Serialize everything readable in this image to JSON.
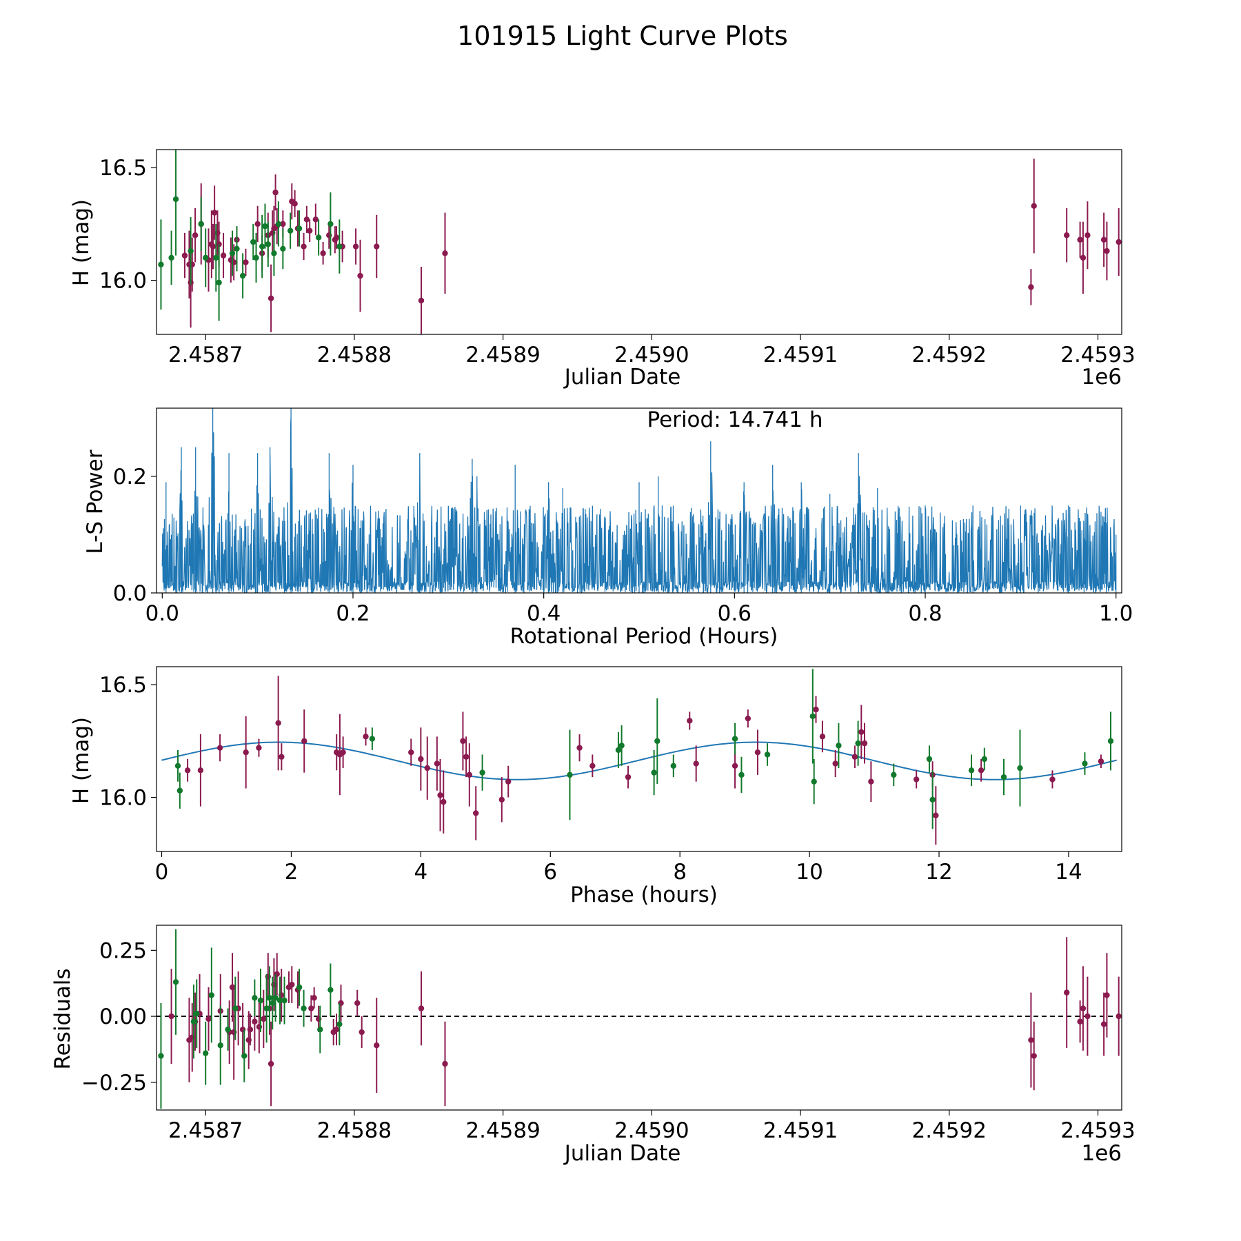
{
  "figure": {
    "title": "101915 Light Curve Plots"
  },
  "colors": {
    "observed_r": "#8b1a4f",
    "observed_g": "#127a2c",
    "periodogram": "#1f77b4",
    "model_fit": "#1f77b4",
    "zero_line": "#000000"
  },
  "chart_data": [
    {
      "id": "lightcurve",
      "type": "scatter",
      "title": "",
      "xlabel": "Julian Date",
      "ylabel": "H (mag)",
      "offset_label": "1e6",
      "xlim": [
        2458667,
        2459316
      ],
      "ylim": [
        15.76,
        16.58
      ],
      "xticks": [
        2458700,
        2458800,
        2458900,
        2459000,
        2459100,
        2459200,
        2459300
      ],
      "xtick_labels": [
        "2.4587",
        "2.4588",
        "2.4589",
        "2.4590",
        "2.4591",
        "2.4592",
        "2.4593"
      ],
      "yticks": [
        16.0,
        16.5
      ],
      "ytick_labels": [
        "16.0",
        "16.5"
      ],
      "series": [
        {
          "name": "r",
          "color_key": "observed_r",
          "x": [
            2458686,
            2458689,
            2458690,
            2458691,
            2458693,
            2458697,
            2458702,
            2458704,
            2458705,
            2458706,
            2458708,
            2458709,
            2458712,
            2458717,
            2458719,
            2458721,
            2458727,
            2458735,
            2458738,
            2458742,
            2458744,
            2458745,
            2458746,
            2458747,
            2458748,
            2458752,
            2458758,
            2458760,
            2458762,
            2458766,
            2458768,
            2458770,
            2458774,
            2458779,
            2458783,
            2458787,
            2458788,
            2458792,
            2458801,
            2458804,
            2458815,
            2458845,
            2458861,
            2459255,
            2459257,
            2459279,
            2459288,
            2459290,
            2459293,
            2459304,
            2459306,
            2459314
          ],
          "y": [
            16.11,
            16.07,
            15.99,
            16.07,
            16.2,
            16.25,
            16.09,
            16.16,
            16.15,
            16.3,
            16.21,
            16.16,
            16.11,
            16.09,
            16.08,
            16.18,
            16.08,
            16.25,
            16.12,
            16.2,
            15.92,
            16.21,
            16.23,
            16.39,
            16.24,
            16.25,
            16.35,
            16.34,
            16.23,
            16.15,
            16.27,
            16.22,
            16.27,
            16.12,
            16.2,
            16.18,
            16.19,
            16.15,
            16.15,
            16.02,
            16.15,
            15.91,
            16.12,
            15.97,
            16.33,
            16.2,
            16.18,
            16.1,
            16.2,
            16.18,
            16.13,
            16.17
          ],
          "err": [
            0.1,
            0.15,
            0.2,
            0.12,
            0.12,
            0.18,
            0.14,
            0.15,
            0.1,
            0.12,
            0.1,
            0.1,
            0.1,
            0.1,
            0.08,
            0.06,
            0.06,
            0.08,
            0.08,
            0.1,
            0.15,
            0.1,
            0.1,
            0.08,
            0.08,
            0.06,
            0.08,
            0.06,
            0.08,
            0.06,
            0.06,
            0.05,
            0.07,
            0.05,
            0.06,
            0.06,
            0.05,
            0.07,
            0.08,
            0.16,
            0.14,
            0.15,
            0.18,
            0.08,
            0.21,
            0.12,
            0.08,
            0.16,
            0.15,
            0.12,
            0.13,
            0.15
          ]
        },
        {
          "name": "g",
          "color_key": "observed_g",
          "x": [
            2458670,
            2458677,
            2458680,
            2458690,
            2458697,
            2458700,
            2458707,
            2458709,
            2458718,
            2458721,
            2458725,
            2458732,
            2458734,
            2458738,
            2458740,
            2458742,
            2458746,
            2458749,
            2458752,
            2458757,
            2458763,
            2458776,
            2458784,
            2458790
          ],
          "y": [
            16.07,
            16.1,
            16.36,
            16.13,
            16.25,
            16.1,
            16.1,
            15.99,
            16.12,
            16.14,
            16.02,
            16.17,
            16.1,
            16.15,
            16.24,
            16.16,
            16.12,
            16.25,
            16.14,
            16.22,
            16.23,
            16.19,
            16.25,
            16.15
          ],
          "err": [
            0.2,
            0.12,
            0.25,
            0.15,
            0.12,
            0.13,
            0.15,
            0.17,
            0.1,
            0.1,
            0.1,
            0.08,
            0.11,
            0.14,
            0.1,
            0.1,
            0.1,
            0.1,
            0.09,
            0.08,
            0.08,
            0.08,
            0.14,
            0.12
          ]
        }
      ]
    },
    {
      "id": "periodogram",
      "type": "line",
      "title": "",
      "xlabel": "Rotational Period (Hours)",
      "ylabel": "L-S Power",
      "annotation": "Period: 14.741 h",
      "xlim": [
        -0.006,
        1.006
      ],
      "ylim": [
        0,
        0.317
      ],
      "xticks": [
        0.0,
        0.2,
        0.4,
        0.6,
        0.8,
        1.0
      ],
      "xtick_labels": [
        "0.0",
        "0.2",
        "0.4",
        "0.6",
        "0.8",
        "1.0"
      ],
      "yticks": [
        0.0,
        0.2
      ],
      "ytick_labels": [
        "0.0",
        "0.2"
      ],
      "x_range": [
        0.0,
        1.0
      ],
      "noise_floor": 0.07,
      "n_samples": 2600,
      "envelope_peaks": {
        "x": [
          0.004,
          0.02,
          0.035,
          0.053,
          0.07,
          0.1,
          0.113,
          0.135,
          0.175,
          0.2,
          0.27,
          0.325,
          0.33,
          0.37,
          0.405,
          0.42,
          0.5,
          0.52,
          0.575,
          0.61,
          0.64,
          0.67,
          0.7,
          0.73,
          0.75,
          0.8,
          0.85,
          0.9,
          0.95,
          0.99,
          1.0
        ],
        "y": [
          0.19,
          0.25,
          0.25,
          0.32,
          0.24,
          0.24,
          0.25,
          0.32,
          0.24,
          0.22,
          0.24,
          0.23,
          0.2,
          0.22,
          0.19,
          0.18,
          0.19,
          0.2,
          0.26,
          0.19,
          0.22,
          0.19,
          0.17,
          0.24,
          0.18,
          0.15,
          0.15,
          0.15,
          0.15,
          0.12,
          0.1
        ]
      }
    },
    {
      "id": "phased",
      "type": "scatter",
      "title": "",
      "xlabel": "Phase (hours)",
      "ylabel": "H (mag)",
      "xlim": [
        -0.08,
        14.82
      ],
      "ylim": [
        15.76,
        16.58
      ],
      "xticks": [
        0,
        2,
        4,
        6,
        8,
        10,
        12,
        14
      ],
      "xtick_labels": [
        "0",
        "2",
        "4",
        "6",
        "8",
        "10",
        "12",
        "14"
      ],
      "yticks": [
        16.0,
        16.5
      ],
      "ytick_labels": [
        "16.0",
        "16.5"
      ],
      "model": {
        "mean": 16.162,
        "amplitude": 0.083,
        "period": 7.3705,
        "peak_phase": 1.8
      },
      "series": [
        {
          "name": "r",
          "color_key": "observed_r",
          "x": [
            0.4,
            0.6,
            0.9,
            1.3,
            1.5,
            1.8,
            1.85,
            2.2,
            2.7,
            2.75,
            2.8,
            3.15,
            3.85,
            4.0,
            4.1,
            4.25,
            4.3,
            4.35,
            4.65,
            4.7,
            4.75,
            4.85,
            5.25,
            5.35,
            6.45,
            6.65,
            7.2,
            8.15,
            8.25,
            8.85,
            9.05,
            9.2,
            10.1,
            10.2,
            10.4,
            10.7,
            10.8,
            10.85,
            10.95,
            11.65,
            11.9,
            11.95,
            12.65,
            13.75,
            14.5
          ],
          "y": [
            16.12,
            16.12,
            16.22,
            16.2,
            16.22,
            16.33,
            16.18,
            16.25,
            16.2,
            16.19,
            16.2,
            16.27,
            16.2,
            16.17,
            16.13,
            16.15,
            16.01,
            15.98,
            16.25,
            16.18,
            16.1,
            15.93,
            15.99,
            16.07,
            16.22,
            16.14,
            16.09,
            16.34,
            16.15,
            16.14,
            16.35,
            16.2,
            16.39,
            16.27,
            16.15,
            16.18,
            16.29,
            16.24,
            16.07,
            16.08,
            16.1,
            15.92,
            16.12,
            16.08,
            16.16
          ],
          "err": [
            0.05,
            0.16,
            0.06,
            0.16,
            0.04,
            0.21,
            0.06,
            0.14,
            0.08,
            0.18,
            0.07,
            0.04,
            0.06,
            0.14,
            0.14,
            0.12,
            0.16,
            0.14,
            0.13,
            0.09,
            0.14,
            0.12,
            0.1,
            0.07,
            0.06,
            0.05,
            0.05,
            0.04,
            0.08,
            0.1,
            0.04,
            0.1,
            0.06,
            0.07,
            0.06,
            0.05,
            0.12,
            0.09,
            0.09,
            0.04,
            0.06,
            0.13,
            0.05,
            0.04,
            0.03
          ]
        },
        {
          "name": "g",
          "color_key": "observed_g",
          "x": [
            0.25,
            0.28,
            3.25,
            4.95,
            6.3,
            7.05,
            7.1,
            7.6,
            7.65,
            7.9,
            8.85,
            8.95,
            9.35,
            10.05,
            10.07,
            10.45,
            10.75,
            11.3,
            11.85,
            11.9,
            12.5,
            12.7,
            13.0,
            13.25,
            14.25,
            14.65
          ],
          "y": [
            16.14,
            16.03,
            16.26,
            16.11,
            16.1,
            16.21,
            16.23,
            16.11,
            16.25,
            16.14,
            16.26,
            16.1,
            16.19,
            16.36,
            16.07,
            16.23,
            16.24,
            16.1,
            16.17,
            15.99,
            16.12,
            16.17,
            16.09,
            16.13,
            16.15,
            16.25
          ],
          "err": [
            0.07,
            0.08,
            0.05,
            0.08,
            0.2,
            0.08,
            0.09,
            0.1,
            0.19,
            0.05,
            0.07,
            0.08,
            0.05,
            0.21,
            0.1,
            0.1,
            0.1,
            0.05,
            0.06,
            0.13,
            0.07,
            0.05,
            0.08,
            0.17,
            0.05,
            0.13
          ]
        }
      ]
    },
    {
      "id": "residuals",
      "type": "scatter",
      "title": "",
      "xlabel": "Julian Date",
      "ylabel": "Residuals",
      "offset_label": "1e6",
      "xlim": [
        2458667,
        2459316
      ],
      "ylim": [
        -0.355,
        0.345
      ],
      "xticks": [
        2458700,
        2458800,
        2458900,
        2459000,
        2459100,
        2459200,
        2459300
      ],
      "xtick_labels": [
        "2.4587",
        "2.4588",
        "2.4589",
        "2.4590",
        "2.4591",
        "2.4592",
        "2.4593"
      ],
      "yticks": [
        0.25,
        0.0,
        -0.25
      ],
      "ytick_labels": [
        "0.25",
        "0.00",
        "−0.25"
      ],
      "zero_line": 0.0,
      "series": [
        {
          "name": "r",
          "color_key": "observed_r",
          "x": [
            2458677,
            2458689,
            2458691,
            2458693,
            2458696,
            2458702,
            2458710,
            2458716,
            2458718,
            2458719,
            2458722,
            2458725,
            2458729,
            2458730,
            2458733,
            2458736,
            2458739,
            2458742,
            2458743,
            2458744,
            2458746,
            2458748,
            2458751,
            2458756,
            2458758,
            2458762,
            2458771,
            2458773,
            2458776,
            2458786,
            2458788,
            2458791,
            2458802,
            2458805,
            2458815,
            2458845,
            2458861,
            2459255,
            2459257,
            2459279,
            2459288,
            2459290,
            2459293,
            2459304,
            2459306,
            2459314
          ],
          "y": [
            0.0,
            -0.09,
            -0.08,
            -0.02,
            0.01,
            -0.01,
            0.02,
            -0.06,
            0.11,
            -0.06,
            0.03,
            -0.05,
            -0.09,
            -0.05,
            -0.02,
            -0.04,
            -0.01,
            0.15,
            0.03,
            -0.18,
            0.12,
            0.16,
            0.08,
            0.11,
            0.12,
            0.1,
            0.03,
            0.07,
            -0.01,
            -0.06,
            -0.05,
            0.05,
            0.05,
            -0.06,
            -0.11,
            0.03,
            -0.18,
            -0.09,
            -0.15,
            0.09,
            -0.02,
            0.03,
            0.0,
            -0.03,
            0.08,
            0.0
          ],
          "err": [
            0.18,
            0.16,
            0.13,
            0.11,
            0.15,
            0.12,
            0.14,
            0.12,
            0.13,
            0.18,
            0.14,
            0.1,
            0.11,
            0.06,
            0.11,
            0.1,
            0.11,
            0.09,
            0.1,
            0.16,
            0.1,
            0.08,
            0.1,
            0.06,
            0.07,
            0.07,
            0.05,
            0.04,
            0.05,
            0.05,
            0.06,
            0.07,
            0.05,
            0.06,
            0.18,
            0.14,
            0.16,
            0.18,
            0.13,
            0.21,
            0.08,
            0.16,
            0.15,
            0.12,
            0.16,
            0.15
          ]
        },
        {
          "name": "g",
          "color_key": "observed_g",
          "x": [
            2458670,
            2458680,
            2458692,
            2458694,
            2458700,
            2458704,
            2458710,
            2458715,
            2458720,
            2458726,
            2458733,
            2458737,
            2458741,
            2458743,
            2458745,
            2458747,
            2458750,
            2458753,
            2458763,
            2458766,
            2458777,
            2458784,
            2458790
          ],
          "y": [
            -0.15,
            0.13,
            -0.02,
            0.01,
            -0.14,
            0.08,
            -0.11,
            -0.05,
            0.03,
            -0.15,
            0.07,
            0.06,
            0.03,
            0.07,
            0.05,
            0.07,
            0.06,
            0.06,
            0.11,
            0.03,
            -0.05,
            0.1,
            -0.03
          ],
          "err": [
            0.2,
            0.2,
            0.14,
            0.13,
            0.12,
            0.18,
            0.15,
            0.08,
            0.12,
            0.1,
            0.07,
            0.12,
            0.13,
            0.12,
            0.1,
            0.09,
            0.09,
            0.09,
            0.07,
            0.07,
            0.09,
            0.1,
            0.08
          ]
        }
      ]
    }
  ]
}
